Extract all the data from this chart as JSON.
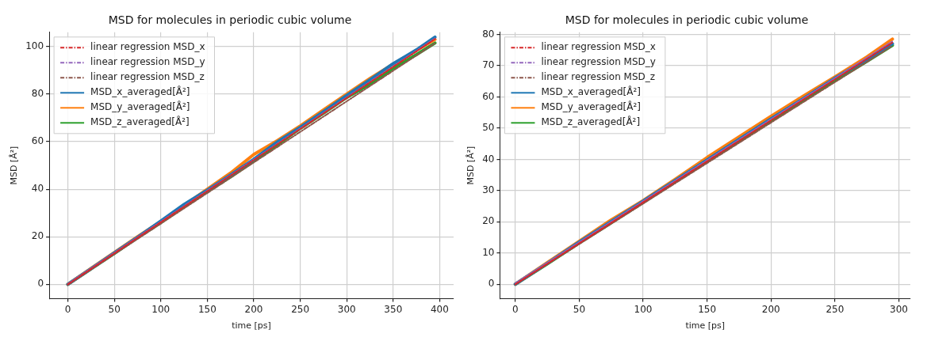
{
  "chart_data": [
    {
      "type": "line",
      "title": "MSD for molecules in periodic cubic volume",
      "xlabel": "time [ps]",
      "ylabel": "MSD [Å²]",
      "xlim": [
        -20,
        415
      ],
      "xticks": [
        0,
        50,
        100,
        150,
        200,
        250,
        300,
        350,
        400
      ],
      "ylim": [
        -6,
        106
      ],
      "yticks": [
        0,
        20,
        40,
        60,
        80,
        100
      ],
      "grid": true,
      "legend": "top left",
      "series": [
        {
          "name": "linear regression MSD_x",
          "color": "#d62728",
          "line_style": "dashed",
          "x": [
            0,
            395
          ],
          "values": [
            0,
            103.2
          ]
        },
        {
          "name": "linear regression MSD_y",
          "color": "#9467bd",
          "line_style": "dashed",
          "x": [
            0,
            395
          ],
          "values": [
            0.2,
            103.4
          ]
        },
        {
          "name": "linear regression MSD_z",
          "color": "#8c564b",
          "line_style": "dashed",
          "x": [
            0,
            395
          ],
          "values": [
            -0.2,
            101.4
          ]
        },
        {
          "name": "MSD_x_averaged[Å²]",
          "color": "#1f77b4",
          "line_style": "solid",
          "x": [
            0,
            25,
            50,
            75,
            100,
            125,
            150,
            175,
            200,
            225,
            250,
            275,
            300,
            325,
            350,
            375,
            395
          ],
          "values": [
            0,
            6.6,
            13.2,
            19.8,
            26.6,
            33.6,
            39.6,
            46,
            52.6,
            59.8,
            66,
            72.6,
            79.4,
            86,
            92.8,
            98.6,
            104
          ]
        },
        {
          "name": "MSD_y_averaged[Å²]",
          "color": "#ff7f0e",
          "line_style": "solid",
          "x": [
            0,
            25,
            50,
            75,
            100,
            125,
            150,
            175,
            200,
            225,
            250,
            275,
            300,
            325,
            350,
            375,
            395
          ],
          "values": [
            0,
            6.7,
            13.4,
            20,
            26.4,
            33.2,
            40,
            46.8,
            54.6,
            60.4,
            66.6,
            73.4,
            80,
            86.6,
            92.6,
            98.4,
            103
          ]
        },
        {
          "name": "MSD_z_averaged[Å²]",
          "color": "#2ca02c",
          "line_style": "solid",
          "x": [
            0,
            25,
            50,
            75,
            100,
            125,
            150,
            175,
            200,
            225,
            250,
            275,
            300,
            325,
            350,
            375,
            395
          ],
          "values": [
            0,
            6.5,
            13,
            19.6,
            26,
            32.6,
            39,
            45.2,
            51.8,
            58.6,
            65.6,
            72,
            78.6,
            84.2,
            90.8,
            96.6,
            101.5
          ]
        }
      ]
    },
    {
      "type": "line",
      "title": "MSD for molecules in periodic cubic volume",
      "xlabel": "time [ps]",
      "ylabel": "MSD [Å²]",
      "xlim": [
        -12,
        309
      ],
      "xticks": [
        0,
        50,
        100,
        150,
        200,
        250,
        300
      ],
      "ylim": [
        -4.6,
        80.7
      ],
      "yticks": [
        0,
        10,
        20,
        30,
        40,
        50,
        60,
        70,
        80
      ],
      "grid": true,
      "legend": "top left",
      "series": [
        {
          "name": "linear regression MSD_x",
          "color": "#d62728",
          "line_style": "dashed",
          "x": [
            0,
            295
          ],
          "values": [
            0,
            77.4
          ]
        },
        {
          "name": "linear regression MSD_y",
          "color": "#9467bd",
          "line_style": "dashed",
          "x": [
            0,
            295
          ],
          "values": [
            0.3,
            77.8
          ]
        },
        {
          "name": "linear regression MSD_z",
          "color": "#8c564b",
          "line_style": "dashed",
          "x": [
            0,
            295
          ],
          "values": [
            -0.1,
            76.4
          ]
        },
        {
          "name": "MSD_x_averaged[Å²]",
          "color": "#1f77b4",
          "line_style": "solid",
          "x": [
            0,
            25,
            50,
            75,
            100,
            125,
            150,
            175,
            200,
            225,
            250,
            275,
            295
          ],
          "values": [
            0,
            6.7,
            13.5,
            20.1,
            26.6,
            33.2,
            39.8,
            46.4,
            53,
            59.4,
            66,
            72,
            77
          ]
        },
        {
          "name": "MSD_y_averaged[Å²]",
          "color": "#ff7f0e",
          "line_style": "solid",
          "x": [
            0,
            25,
            50,
            75,
            100,
            125,
            150,
            175,
            200,
            225,
            250,
            275,
            295
          ],
          "values": [
            0,
            6.9,
            13.8,
            20.6,
            26.8,
            33.6,
            40.6,
            47.2,
            53.8,
            60.2,
            66.4,
            72.8,
            78.5
          ]
        },
        {
          "name": "MSD_z_averaged[Å²]",
          "color": "#2ca02c",
          "line_style": "solid",
          "x": [
            0,
            25,
            50,
            75,
            100,
            125,
            150,
            175,
            200,
            225,
            250,
            275,
            295
          ],
          "values": [
            0,
            6.5,
            13.2,
            19.7,
            26.2,
            32.8,
            39.3,
            45.8,
            52.4,
            58.8,
            65.2,
            71.4,
            76.5
          ]
        }
      ]
    }
  ]
}
